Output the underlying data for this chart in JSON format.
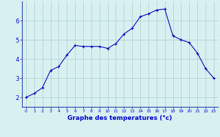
{
  "x": [
    0,
    1,
    2,
    3,
    4,
    5,
    6,
    7,
    8,
    9,
    10,
    11,
    12,
    13,
    14,
    15,
    16,
    17,
    18,
    19,
    20,
    21,
    22,
    23
  ],
  "y": [
    2.0,
    2.2,
    2.5,
    3.4,
    3.6,
    4.2,
    4.7,
    4.65,
    4.65,
    4.65,
    4.55,
    4.8,
    5.3,
    5.6,
    6.2,
    6.35,
    6.55,
    6.6,
    5.2,
    5.0,
    4.85,
    4.3,
    3.5,
    3.0
  ],
  "xlabel": "Graphe des temperatures (°c)",
  "ylim": [
    1.5,
    7.0
  ],
  "xlim": [
    -0.5,
    23.5
  ],
  "yticks": [
    2,
    3,
    4,
    5,
    6
  ],
  "xticks": [
    0,
    1,
    2,
    3,
    4,
    5,
    6,
    7,
    8,
    9,
    10,
    11,
    12,
    13,
    14,
    15,
    16,
    17,
    18,
    19,
    20,
    21,
    22,
    23
  ],
  "line_color": "#0000bb",
  "marker": "+",
  "bg_color": "#d8f0f0",
  "grid_color": "#aacccc",
  "axis_color": "#2244aa",
  "label_color": "#0000cc"
}
